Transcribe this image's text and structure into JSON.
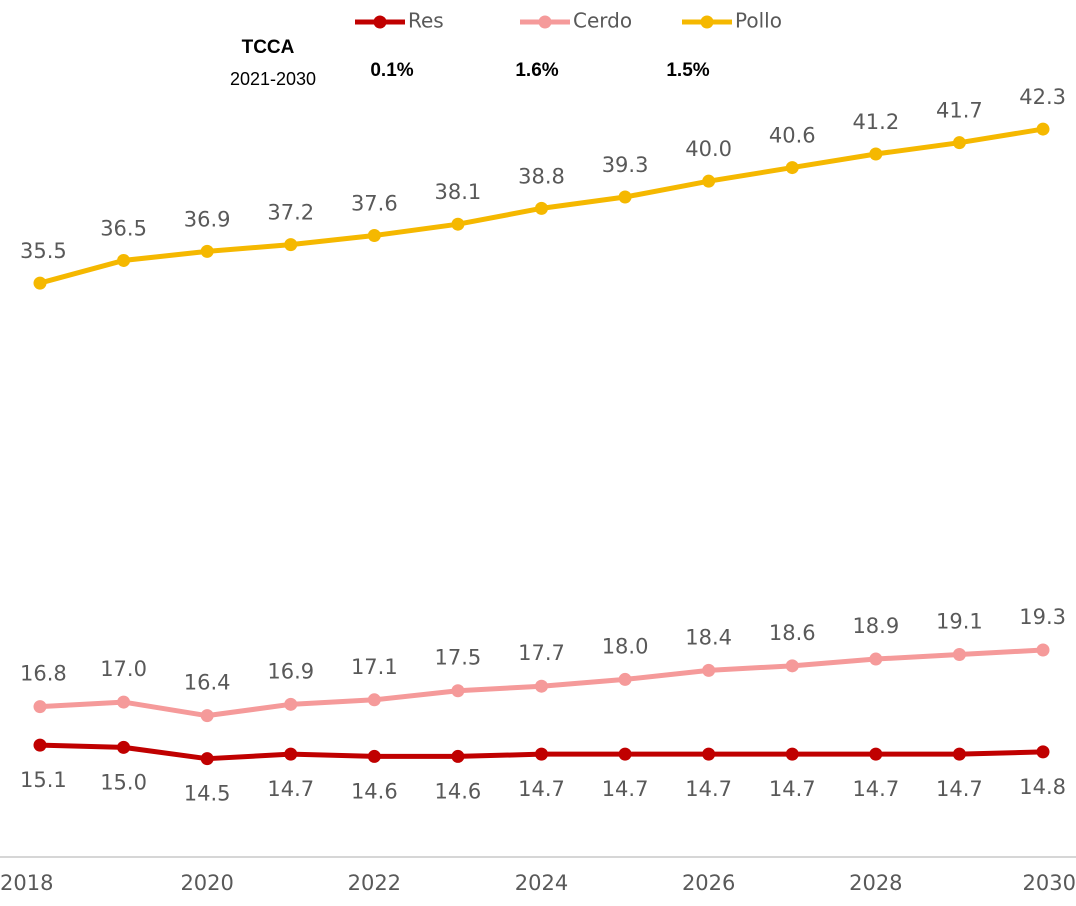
{
  "chart_data": {
    "type": "line",
    "x": [
      2018,
      2019,
      2020,
      2021,
      2022,
      2023,
      2024,
      2025,
      2026,
      2027,
      2028,
      2029,
      2030
    ],
    "xlim": [
      2018,
      2030
    ],
    "xticks": [
      2018,
      2020,
      2022,
      2024,
      2026,
      2028,
      2030
    ],
    "ylim": [
      10,
      48
    ],
    "legend": "top",
    "annotations": [
      "TCCA",
      "2021-2030",
      "0.1%",
      "1.6%",
      "1.5%"
    ],
    "series": [
      {
        "name": "Res",
        "color": "#c00000",
        "values": [
          15.1,
          15.0,
          14.5,
          14.7,
          14.6,
          14.6,
          14.7,
          14.7,
          14.7,
          14.7,
          14.7,
          14.7,
          14.8
        ],
        "value_labels": [
          "15.1",
          "15.0",
          "14.5",
          "14.7",
          "14.6",
          "14.6",
          "14.7",
          "14.7",
          "14.7",
          "14.7",
          "14.7",
          "14.7",
          "14.8"
        ]
      },
      {
        "name": "Cerdo",
        "color": "#f59a9a",
        "values": [
          16.8,
          17.0,
          16.4,
          16.9,
          17.1,
          17.5,
          17.7,
          18.0,
          18.4,
          18.6,
          18.9,
          19.1,
          19.3
        ],
        "value_labels": [
          "16.8",
          "17.0",
          "16.4",
          "16.9",
          "17.1",
          "17.5",
          "17.7",
          "18.0",
          "18.4",
          "18.6",
          "18.9",
          "19.1",
          "19.3"
        ]
      },
      {
        "name": "Pollo",
        "color": "#f5b800",
        "values": [
          35.5,
          36.5,
          36.9,
          37.2,
          37.6,
          38.1,
          38.8,
          39.3,
          40.0,
          40.6,
          41.2,
          41.7,
          42.3
        ],
        "value_labels": [
          "35.5",
          "36.5",
          "36.9",
          "37.2",
          "37.6",
          "38.1",
          "38.8",
          "39.3",
          "40.0",
          "40.6",
          "41.2",
          "41.7",
          "42.3"
        ]
      }
    ]
  }
}
